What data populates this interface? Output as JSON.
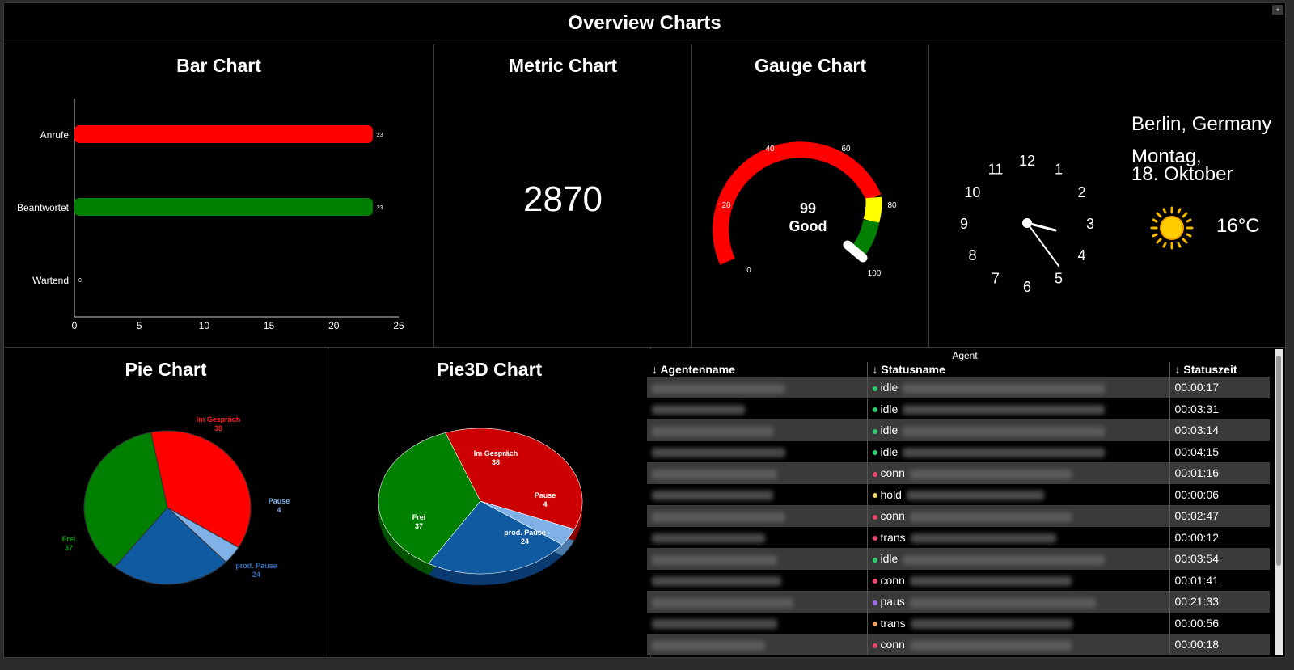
{
  "header": {
    "title": "Overview Charts",
    "corner_icon": "+"
  },
  "panels": {
    "bar": {
      "title": "Bar Chart"
    },
    "metric": {
      "title": "Metric Chart",
      "value": "2870"
    },
    "gauge": {
      "title": "Gauge Chart",
      "value": "99",
      "label": "Good",
      "ticks": [
        "0",
        "20",
        "40",
        "60",
        "80",
        "100"
      ]
    },
    "clock": {
      "location": "Berlin, Germany",
      "day": "Montag,",
      "date": "18. Oktober",
      "temperature": "16°C",
      "weather_icon": "sun-icon",
      "numbers": [
        "12",
        "1",
        "2",
        "3",
        "4",
        "5",
        "6",
        "7",
        "8",
        "9",
        "10",
        "11"
      ]
    },
    "pie": {
      "title": "Pie Chart"
    },
    "pie3d": {
      "title": "Pie3D Chart"
    }
  },
  "colors": {
    "red": "#ff0000",
    "green": "#008000",
    "yellow": "#ffff00",
    "blue": "#0f5aa0",
    "lightblue": "#7fb0e6",
    "darkred": "#cc0000"
  },
  "chart_data": [
    {
      "type": "bar",
      "orientation": "horizontal",
      "title": "Bar Chart",
      "categories": [
        "Anrufe",
        "Beantwortet",
        "Wartend"
      ],
      "values": [
        23,
        23,
        0
      ],
      "bar_colors": [
        "#ff0000",
        "#008000",
        "#000000"
      ],
      "xlim": [
        0,
        25
      ],
      "xticks": [
        "0",
        "5",
        "10",
        "15",
        "20",
        "25"
      ]
    },
    {
      "type": "pie",
      "title": "Pie Chart",
      "labels": [
        "Im Gespräch",
        "Pause",
        "prod. Pause",
        "Frei"
      ],
      "values": [
        38,
        4,
        24,
        37
      ],
      "colors": [
        "#ff0000",
        "#7fb0e6",
        "#0f5aa0",
        "#008000"
      ]
    },
    {
      "type": "pie",
      "title": "Pie3D Chart",
      "labels": [
        "Im Gespräch",
        "Pause",
        "prod. Pause",
        "Frei"
      ],
      "values": [
        38,
        4,
        24,
        37
      ],
      "colors": [
        "#cc0000",
        "#7fb0e6",
        "#0f5aa0",
        "#008000"
      ]
    }
  ],
  "table": {
    "caption": "Agent",
    "columns": [
      "Agentenname",
      "Statusname",
      "Statuszeit"
    ],
    "sort_icon": "↓",
    "rows": [
      {
        "status": "idle",
        "dot": "#2ecc71",
        "time": "00:00:17"
      },
      {
        "status": "idle",
        "dot": "#2ecc71",
        "time": "00:03:31"
      },
      {
        "status": "idle",
        "dot": "#2ecc71",
        "time": "00:03:14"
      },
      {
        "status": "idle",
        "dot": "#2ecc71",
        "time": "00:04:15"
      },
      {
        "status": "conn",
        "dot": "#e8476a",
        "time": "00:01:16"
      },
      {
        "status": "hold",
        "dot": "#e8d46a",
        "time": "00:00:06"
      },
      {
        "status": "conn",
        "dot": "#e8476a",
        "time": "00:02:47"
      },
      {
        "status": "trans",
        "dot": "#e8476a",
        "time": "00:00:12"
      },
      {
        "status": "idle",
        "dot": "#2ecc71",
        "time": "00:03:54"
      },
      {
        "status": "conn",
        "dot": "#e8476a",
        "time": "00:01:41"
      },
      {
        "status": "paus",
        "dot": "#a06ae8",
        "time": "00:21:33"
      },
      {
        "status": "trans",
        "dot": "#e8a06a",
        "time": "00:00:56"
      },
      {
        "status": "conn",
        "dot": "#e8476a",
        "time": "00:00:18"
      }
    ]
  }
}
